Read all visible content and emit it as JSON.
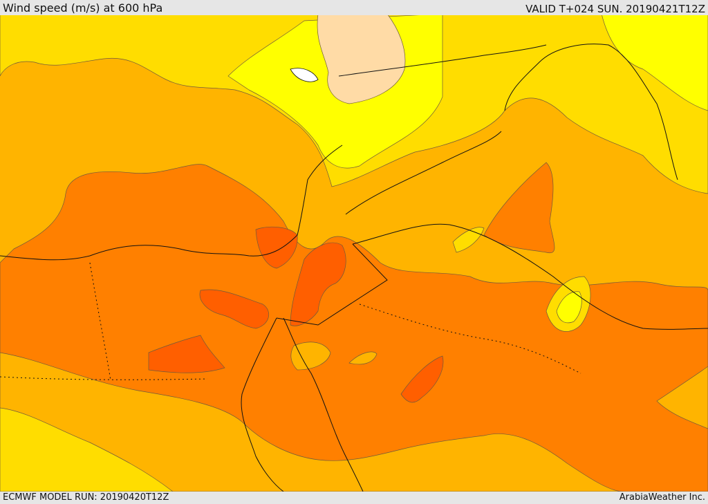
{
  "header": {
    "title": "Wind speed (m/s) at 600 hPa",
    "valid": "VALID T+024 SUN. 20190421T12Z"
  },
  "footer": {
    "model_run": "ECMWF MODEL RUN: 20190420T12Z",
    "credit": "ArabiaWeather Inc."
  },
  "colors": {
    "level_1": "#ffff00",
    "level_2": "#ffdd00",
    "level_3": "#ffb400",
    "level_4": "#ff8000",
    "level_5": "#ff5f00",
    "calm": "#ffdba6",
    "contour": "#6e5a3c",
    "border": "#111111"
  }
}
